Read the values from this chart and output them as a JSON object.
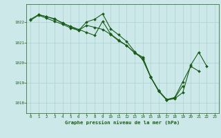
{
  "title": "Graphe pression niveau de la mer (hPa)",
  "bg_color": "#cce8e8",
  "grid_color": "#aad0d0",
  "line_color": "#1a5c1a",
  "marker_color": "#1a5c1a",
  "xlim": [
    -0.5,
    23.5
  ],
  "ylim": [
    1017.5,
    1022.9
  ],
  "yticks": [
    1018,
    1019,
    1020,
    1021,
    1022
  ],
  "xticks": [
    0,
    1,
    2,
    3,
    4,
    5,
    6,
    7,
    8,
    9,
    10,
    11,
    12,
    13,
    14,
    15,
    16,
    17,
    18,
    19,
    20,
    21,
    22,
    23
  ],
  "line1_x": [
    0,
    1,
    2,
    3,
    4,
    5,
    6,
    7,
    8,
    9,
    10,
    11,
    12,
    13,
    14,
    15,
    16,
    17,
    18,
    19,
    20,
    21
  ],
  "line1_y": [
    1022.15,
    1022.38,
    1022.28,
    1022.18,
    1021.95,
    1021.8,
    1021.65,
    1021.5,
    1021.35,
    1022.05,
    1021.42,
    1021.12,
    1020.85,
    1020.5,
    1020.28,
    1019.3,
    1018.62,
    1018.18,
    1018.28,
    1019.05,
    1019.82,
    1019.58
  ],
  "line2_x": [
    0,
    1,
    2,
    3,
    4,
    5,
    6,
    7,
    8,
    9,
    10,
    11,
    12,
    13,
    14,
    15,
    16,
    17,
    18,
    19
  ],
  "line2_y": [
    1022.1,
    1022.35,
    1022.2,
    1022.05,
    1021.9,
    1021.72,
    1021.6,
    1021.85,
    1021.75,
    1021.65,
    1021.4,
    1021.08,
    1020.85,
    1020.48,
    1020.22,
    1019.28,
    1018.6,
    1018.15,
    1018.25,
    1018.85
  ],
  "line3_x": [
    1,
    2,
    3,
    4,
    5,
    6,
    7,
    8,
    9,
    10,
    11,
    12,
    13,
    14,
    15,
    16,
    17,
    18,
    19,
    20,
    21,
    22
  ],
  "line3_y": [
    1022.38,
    1022.28,
    1022.15,
    1021.98,
    1021.78,
    1021.6,
    1022.02,
    1022.15,
    1022.42,
    1021.68,
    1021.38,
    1021.05,
    1020.55,
    1020.15,
    1019.28,
    1018.58,
    1018.15,
    1018.22,
    1018.52,
    1019.88,
    1020.52,
    1019.82
  ]
}
